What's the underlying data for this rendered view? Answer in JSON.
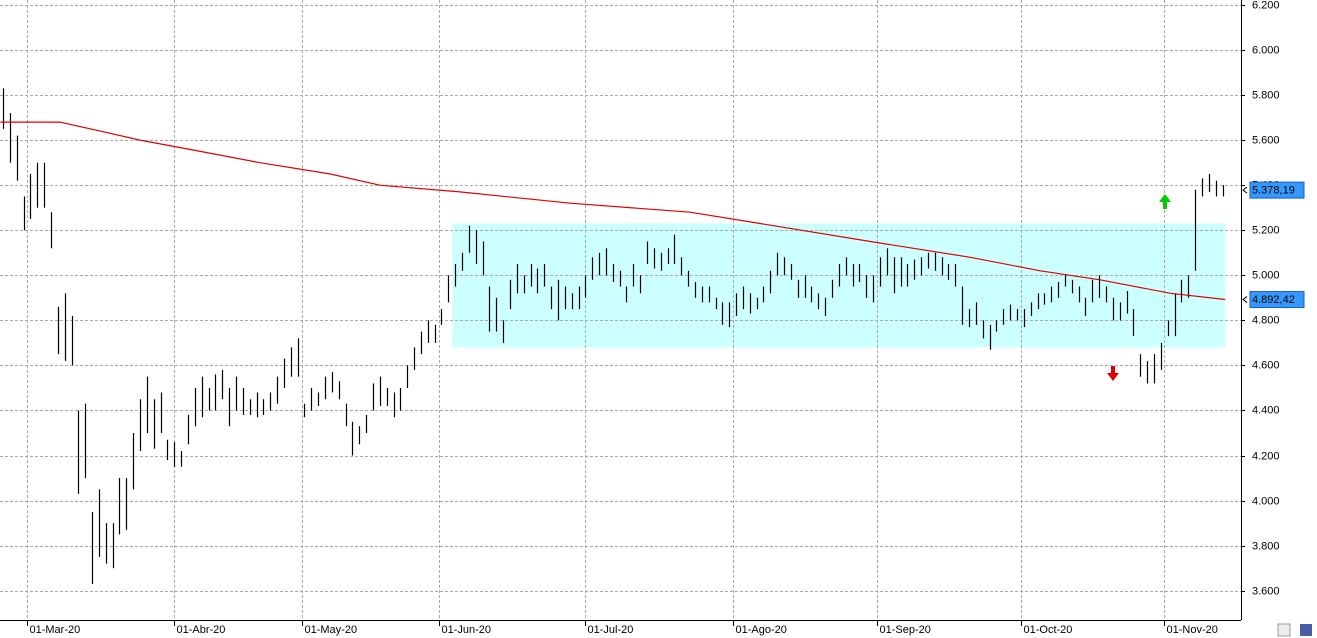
{
  "chart_data": {
    "type": "ohlc",
    "color": "#000000",
    "grid": true,
    "xlim": [
      -0.44,
      180.7
    ],
    "ylim": [
      3470,
      6222
    ],
    "xticks": [
      {
        "value": 3.5,
        "label": "01-Mar-20"
      },
      {
        "value": 25,
        "label": "01-Abr-20"
      },
      {
        "value": 43.7,
        "label": "01-May-20"
      },
      {
        "value": 63.7,
        "label": "01-Jun-20"
      },
      {
        "value": 85,
        "label": "01-Jul-20"
      },
      {
        "value": 106.6,
        "label": "01-Ago-20"
      },
      {
        "value": 127.5,
        "label": "01-Sep-20"
      },
      {
        "value": 148.6,
        "label": "01-Oct-20"
      },
      {
        "value": 169.5,
        "label": "01-Nov-20"
      }
    ],
    "yticks": [
      {
        "value": 3600,
        "label": "3.600"
      },
      {
        "value": 3800,
        "label": "3.800"
      },
      {
        "value": 4000,
        "label": "4.000"
      },
      {
        "value": 4200,
        "label": "4.200"
      },
      {
        "value": 4400,
        "label": "4.400"
      },
      {
        "value": 4600,
        "label": "4.600"
      },
      {
        "value": 4800,
        "label": "4.800"
      },
      {
        "value": 5000,
        "label": "5.000"
      },
      {
        "value": 5200,
        "label": "5.200"
      },
      {
        "value": 5400,
        "label": "5.400"
      },
      {
        "value": 5600,
        "label": "5.600"
      },
      {
        "value": 5800,
        "label": "5.800"
      },
      {
        "value": 6000,
        "label": "6.000"
      },
      {
        "value": 6200,
        "label": "6.200"
      }
    ],
    "high": [
      5830,
      5720,
      5620,
      5350,
      5450,
      5500,
      5500,
      5280,
      4860,
      4920,
      4820,
      4400,
      4430,
      3950,
      4050,
      3900,
      3900,
      4100,
      4100,
      4300,
      4450,
      4550,
      4450,
      4480,
      4270,
      4260,
      4220,
      4380,
      4500,
      4550,
      4500,
      4560,
      4580,
      4500,
      4550,
      4500,
      4450,
      4480,
      4450,
      4480,
      4550,
      4630,
      4680,
      4720,
      4430,
      4500,
      4480,
      4550,
      4570,
      4530,
      4430,
      4350,
      4330,
      4380,
      4520,
      4550,
      4500,
      4480,
      4500,
      4600,
      4680,
      4750,
      4800,
      4780,
      4850,
      5000,
      5050,
      5100,
      5220,
      5200,
      5150,
      4950,
      4900,
      4800,
      4980,
      5050,
      5000,
      5050,
      5030,
      5050,
      4950,
      4980,
      4950,
      4920,
      4950,
      5000,
      5080,
      5100,
      5120,
      5050,
      5020,
      4950,
      5050,
      5000,
      5150,
      5120,
      5100,
      5120,
      5180,
      5080,
      5020,
      4970,
      4950,
      4950,
      4900,
      4880,
      4880,
      4920,
      4950,
      4920,
      4900,
      4950,
      5020,
      5100,
      5080,
      5050,
      4980,
      5000,
      4950,
      4920,
      4900,
      4980,
      5050,
      5080,
      5050,
      5050,
      5000,
      5000,
      5080,
      5120,
      5080,
      5080,
      5050,
      5070,
      5080,
      5100,
      5100,
      5080,
      5050,
      5050,
      4950,
      4850,
      4880,
      4800,
      4780,
      4800,
      4850,
      4870,
      4850,
      4850,
      4880,
      4920,
      4920,
      4950,
      4970,
      5000,
      4980,
      4950,
      4900,
      4980,
      5000,
      4950,
      4900,
      4880,
      4930,
      4850,
      4650,
      4620,
      4650,
      4700,
      4800,
      4920,
      4980,
      5000,
      5380,
      5430,
      5450,
      5420,
      5400
    ],
    "low": [
      5650,
      5500,
      5420,
      5200,
      5250,
      5300,
      5300,
      5120,
      4650,
      4620,
      4600,
      4030,
      4100,
      3630,
      3750,
      3720,
      3700,
      3850,
      3870,
      4050,
      4220,
      4300,
      4230,
      4300,
      4180,
      4150,
      4150,
      4250,
      4330,
      4370,
      4400,
      4400,
      4450,
      4330,
      4400,
      4380,
      4380,
      4370,
      4380,
      4400,
      4430,
      4500,
      4550,
      4550,
      4370,
      4400,
      4420,
      4450,
      4480,
      4450,
      4330,
      4200,
      4250,
      4300,
      4400,
      4420,
      4420,
      4370,
      4400,
      4500,
      4580,
      4650,
      4700,
      4700,
      4780,
      4880,
      4950,
      5020,
      5100,
      5050,
      5000,
      4750,
      4750,
      4700,
      4850,
      4920,
      4920,
      4950,
      4920,
      4950,
      4850,
      4800,
      4850,
      4850,
      4850,
      4900,
      4980,
      5000,
      5000,
      4970,
      4950,
      4880,
      4950,
      4920,
      5050,
      5030,
      5020,
      5050,
      5050,
      5000,
      4950,
      4900,
      4880,
      4880,
      4850,
      4780,
      4770,
      4820,
      4850,
      4830,
      4850,
      4880,
      4920,
      5000,
      5000,
      4980,
      4900,
      4900,
      4880,
      4850,
      4820,
      4900,
      4950,
      5000,
      4950,
      4970,
      4900,
      4880,
      4950,
      5000,
      4920,
      4950,
      4950,
      4980,
      5000,
      5030,
      5020,
      5000,
      4980,
      4950,
      4780,
      4770,
      4780,
      4720,
      4670,
      4750,
      4780,
      4800,
      4800,
      4770,
      4820,
      4850,
      4870,
      4880,
      4900,
      4950,
      4920,
      4880,
      4820,
      4880,
      4900,
      4880,
      4800,
      4800,
      4830,
      4730,
      4550,
      4520,
      4520,
      4580,
      4730,
      4730,
      4880,
      4900,
      5020,
      5350,
      5370,
      5350,
      5350
    ],
    "ma": {
      "color": "#e00000",
      "x": [
        -0.4,
        8.3,
        14.2,
        20,
        28.8,
        37.5,
        47.7,
        55,
        66.7,
        82.8,
        100.3,
        110.5,
        126.6,
        141.2,
        151.4,
        160.1,
        170.4,
        178.4
      ],
      "values": [
        5680,
        5680,
        5640,
        5600,
        5550,
        5500,
        5450,
        5400,
        5370,
        5320,
        5280,
        5230,
        5150,
        5080,
        5020,
        4980,
        4920,
        4892.42
      ]
    },
    "highlight": {
      "x": [
        65.6,
        178.4
      ],
      "y": [
        4680,
        5230
      ],
      "color": "#ccffff"
    },
    "price_labels": [
      {
        "value": 5378.19,
        "label": "5.378,19"
      },
      {
        "value": 4892.42,
        "label": "4.892,42"
      }
    ]
  }
}
